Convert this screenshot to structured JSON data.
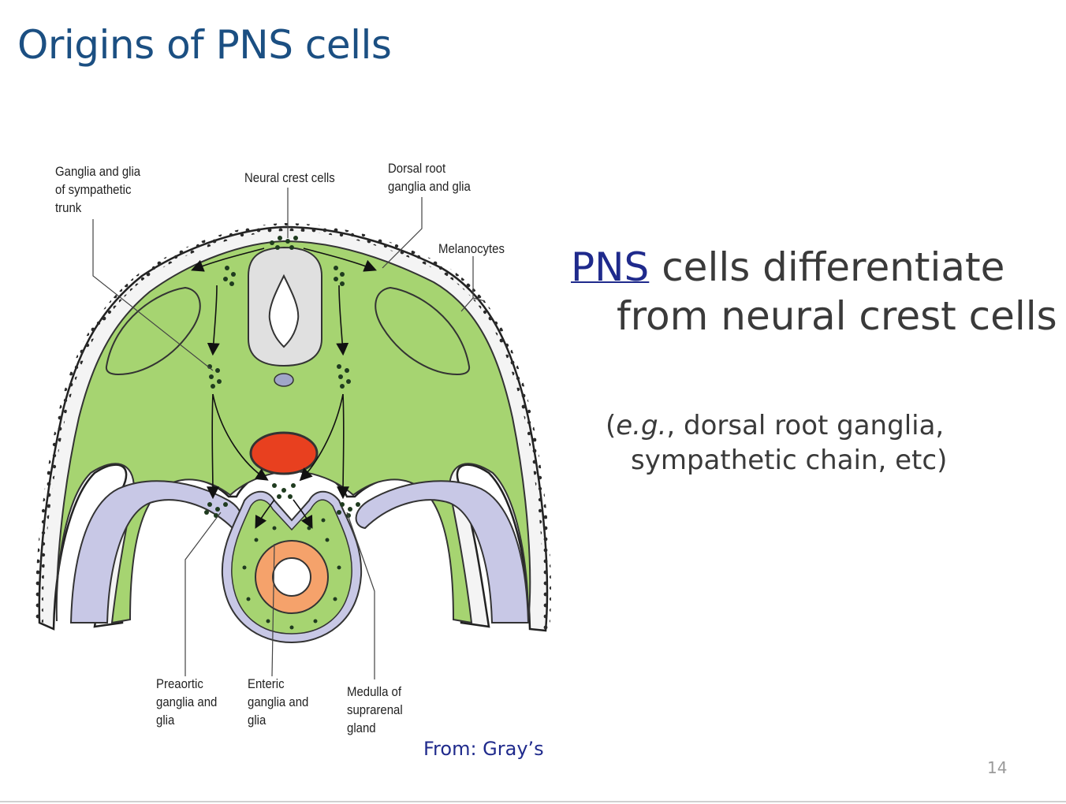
{
  "slide": {
    "title": "Origins of PNS cells",
    "page_number": "14"
  },
  "figure": {
    "labels": {
      "ganglia_sympathetic": "Ganglia and glia\nof sympathetic\ntrunk",
      "neural_crest": "Neural crest cells",
      "dorsal_root": "Dorsal root\nganglia and glia",
      "melanocytes": "Melanocytes",
      "preaortic": "Preaortic\nganglia and\nglia",
      "enteric": "Enteric\nganglia and\nglia",
      "medulla": "Medulla of\nsuprarenal\ngland"
    },
    "caption": "From: Gray’s",
    "colors": {
      "tissue": "#a6d471",
      "neural_tube": "#e0e0e0",
      "aorta": "#e8401f",
      "gut": "#f5a26b",
      "cavity": "#c8c8e6"
    }
  },
  "text": {
    "bullet_link": "PNS",
    "bullet_rest": " cells differentiate from neural crest cells",
    "example_open": "(",
    "example_italic": "e.g.",
    "example_rest": ", dorsal root ganglia, sympathetic chain, etc)"
  }
}
